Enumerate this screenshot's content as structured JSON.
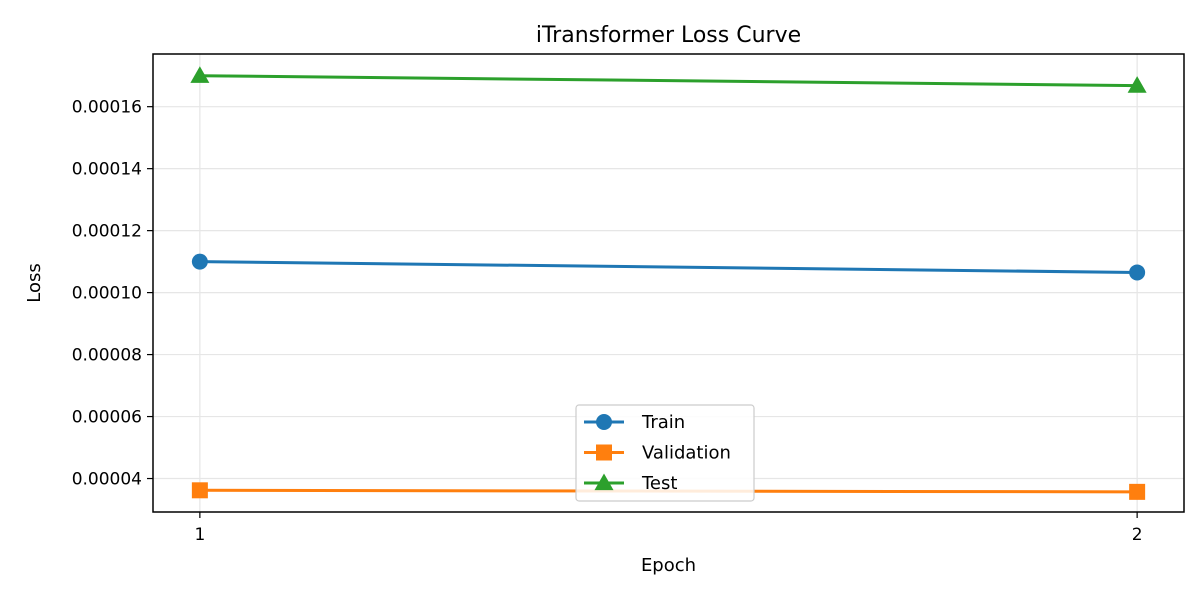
{
  "chart_data": {
    "type": "line",
    "title": "iTransformer Loss Curve",
    "xlabel": "Epoch",
    "ylabel": "Loss",
    "x": [
      1,
      2
    ],
    "xticks": [
      "1",
      "2"
    ],
    "xlim": [
      0.95,
      2.05
    ],
    "ylim": [
      2.92e-05,
      0.000177
    ],
    "yticks": [
      4e-05,
      6e-05,
      8e-05,
      0.0001,
      0.00012,
      0.00014,
      0.00016
    ],
    "ytick_labels": [
      "0.00004",
      "0.00006",
      "0.00008",
      "0.00010",
      "0.00012",
      "0.00014",
      "0.00016"
    ],
    "grid": true,
    "legend_position": "lower-center",
    "series": [
      {
        "name": "Train",
        "values": [
          0.00011,
          0.0001065
        ],
        "color": "#1f77b4",
        "marker": "circle"
      },
      {
        "name": "Validation",
        "values": [
          3.62e-05,
          3.57e-05
        ],
        "color": "#ff7f0e",
        "marker": "square"
      },
      {
        "name": "Test",
        "values": [
          0.00017,
          0.0001668
        ],
        "color": "#2ca02c",
        "marker": "triangle"
      }
    ]
  }
}
